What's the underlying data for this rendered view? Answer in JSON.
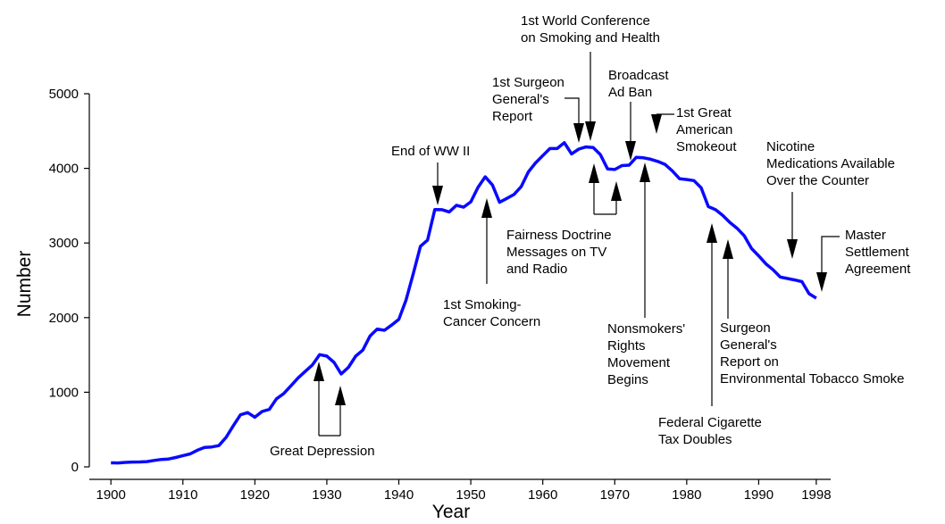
{
  "chart_data": {
    "type": "line",
    "x_label": "Year",
    "y_label": "Number",
    "x": [
      1900,
      1901,
      1902,
      1903,
      1904,
      1905,
      1906,
      1907,
      1908,
      1909,
      1910,
      1911,
      1912,
      1913,
      1914,
      1915,
      1916,
      1917,
      1918,
      1919,
      1920,
      1921,
      1922,
      1923,
      1924,
      1925,
      1926,
      1927,
      1928,
      1929,
      1930,
      1931,
      1932,
      1933,
      1934,
      1935,
      1936,
      1937,
      1938,
      1939,
      1940,
      1941,
      1942,
      1943,
      1944,
      1945,
      1946,
      1947,
      1948,
      1949,
      1950,
      1951,
      1952,
      1953,
      1954,
      1955,
      1956,
      1957,
      1958,
      1959,
      1960,
      1961,
      1962,
      1963,
      1964,
      1965,
      1966,
      1967,
      1968,
      1969,
      1970,
      1971,
      1972,
      1973,
      1974,
      1975,
      1976,
      1977,
      1978,
      1979,
      1980,
      1981,
      1982,
      1983,
      1984,
      1985,
      1986,
      1987,
      1988,
      1989,
      1990,
      1991,
      1992,
      1993,
      1994,
      1995,
      1996,
      1997,
      1998
    ],
    "values": [
      54,
      53,
      60,
      64,
      66,
      70,
      86,
      99,
      105,
      125,
      151,
      173,
      223,
      260,
      267,
      285,
      395,
      551,
      697,
      727,
      665,
      742,
      770,
      911,
      982,
      1085,
      1191,
      1279,
      1366,
      1504,
      1485,
      1399,
      1245,
      1334,
      1483,
      1564,
      1754,
      1847,
      1830,
      1900,
      1976,
      2236,
      2585,
      2956,
      3039,
      3449,
      3446,
      3416,
      3505,
      3480,
      3552,
      3744,
      3886,
      3778,
      3546,
      3597,
      3650,
      3755,
      3953,
      4073,
      4171,
      4266,
      4265,
      4345,
      4194,
      4258,
      4287,
      4280,
      4186,
      3993,
      3985,
      4037,
      4043,
      4148,
      4141,
      4122,
      4092,
      4051,
      3967,
      3861,
      3851,
      3836,
      3739,
      3488,
      3446,
      3370,
      3274,
      3197,
      3096,
      2926,
      2828,
      2720,
      2641,
      2543,
      2524,
      2505,
      2482,
      2320,
      2261
    ],
    "color": "#0a0aff",
    "xlim": [
      1897,
      2000
    ],
    "xticks": [
      1900,
      1910,
      1920,
      1930,
      1940,
      1950,
      1960,
      1970,
      1980,
      1990,
      1998
    ],
    "ylim": [
      0,
      5000
    ],
    "yticks": [
      0,
      1000,
      2000,
      3000,
      4000,
      5000
    ],
    "grid": false,
    "annotations": [
      [
        "Great Depression"
      ],
      [
        "End of WW II"
      ],
      [
        "1st Smoking-",
        "Cancer Concern"
      ],
      [
        "Fairness Doctrine",
        "Messages on TV",
        "and Radio"
      ],
      [
        "1st Surgeon",
        "General's",
        "Report"
      ],
      [
        "1st World Conference",
        "on Smoking and Health"
      ],
      [
        "Broadcast",
        "Ad Ban"
      ],
      [
        "1st Great",
        "American",
        "Smokeout"
      ],
      [
        "Nonsmokers'",
        "Rights",
        "Movement",
        "Begins"
      ],
      [
        "Federal Cigarette",
        "Tax Doubles"
      ],
      [
        "Surgeon",
        "General's",
        "Report on",
        "Environmental Tobacco Smoke"
      ],
      [
        "Nicotine",
        "Medications Available",
        "Over the Counter"
      ],
      [
        "Master",
        "Settlement",
        "Agreement"
      ]
    ]
  }
}
